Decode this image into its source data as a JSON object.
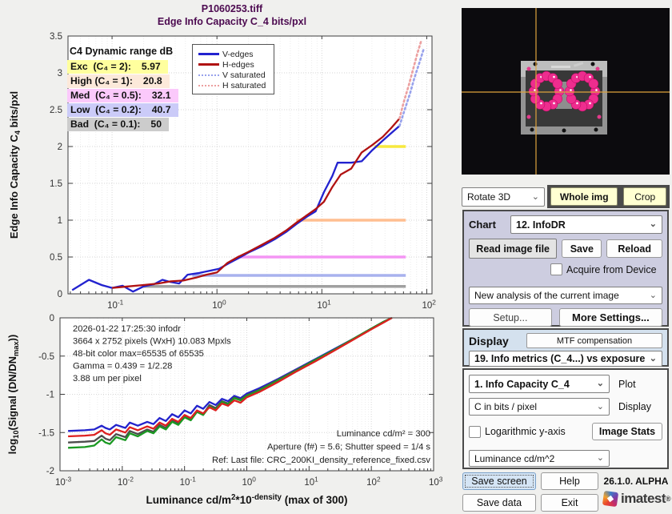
{
  "fig": {
    "title1": "P1060253.tiff",
    "title2": "Edge Info Capacity C_4 bits/pxl"
  },
  "colors": {
    "title": "#4c0a50",
    "v_edges": "#2222cf",
    "h_edges": "#b01212",
    "v_saturated": "#98a2ec",
    "h_saturated": "#eca0a0",
    "bottom_blue": "#2222cc",
    "bottom_red": "#dd2020",
    "bottom_green": "#1a9922",
    "bottom_gray": "#4d4d4d",
    "crosshair": "#dfa33c",
    "blob_pink": "#ee2d8e"
  },
  "icons": {
    "chevron": "⌄"
  },
  "chart_data": [
    {
      "type": "line",
      "title": "Edge Info Capacity C_4 bits/pxl",
      "xscale": "log",
      "xlim_log": [
        -1.42,
        2.05
      ],
      "ylim": [
        0,
        3.5
      ],
      "xticks_log": [
        -1,
        0,
        1,
        2
      ],
      "yticks": [
        0,
        0.5,
        1,
        1.5,
        2,
        2.5,
        3,
        3.5
      ],
      "ylabel_parts": [
        {
          "t": "Edge Info Capacity C"
        },
        {
          "t": "4",
          "s": "sub"
        },
        {
          "t": " bits/pxl"
        }
      ],
      "grid": true,
      "legend_position": "upper-center",
      "legend": [
        {
          "label": "V-edges",
          "color": "#2222cf",
          "style": "solid"
        },
        {
          "label": "H-edges",
          "color": "#b01212",
          "style": "solid"
        },
        {
          "label": "V saturated",
          "color": "#98a2ec",
          "style": "dotted"
        },
        {
          "label": "H saturated",
          "color": "#eca0a0",
          "style": "dotted"
        }
      ],
      "threshold_lines": [
        {
          "y": 2.0,
          "x0_log": 1.5,
          "x1_log": 1.8,
          "color": "#f7e93e"
        },
        {
          "y": 1.0,
          "x0_log": 0.757,
          "x1_log": 1.8,
          "color": "#ffbe90"
        },
        {
          "y": 0.5,
          "x0_log": 0.197,
          "x1_log": 1.8,
          "color": "#f495f4"
        },
        {
          "y": 0.25,
          "x0_log": -0.235,
          "x1_log": 1.8,
          "color": "#a8b2ee"
        },
        {
          "y": 0.1,
          "x0_log": -0.7,
          "x1_log": 1.8,
          "color": "#a0a0a0"
        }
      ],
      "series": [
        {
          "name": "V-edges",
          "color": "#2222cf",
          "style": "solid",
          "points": [
            [
              -1.38,
              0.05
            ],
            [
              -1.22,
              0.19
            ],
            [
              -1.1,
              0.12
            ],
            [
              -1.0,
              0.08
            ],
            [
              -0.9,
              0.11
            ],
            [
              -0.8,
              0.03
            ],
            [
              -0.7,
              0.1
            ],
            [
              -0.6,
              0.13
            ],
            [
              -0.52,
              0.19
            ],
            [
              -0.44,
              0.16
            ],
            [
              -0.36,
              0.14
            ],
            [
              -0.28,
              0.26
            ],
            [
              -0.18,
              0.28
            ],
            [
              -0.08,
              0.31
            ],
            [
              0.02,
              0.34
            ],
            [
              0.12,
              0.42
            ],
            [
              0.2,
              0.48
            ],
            [
              0.3,
              0.56
            ],
            [
              0.42,
              0.64
            ],
            [
              0.55,
              0.74
            ],
            [
              0.66,
              0.84
            ],
            [
              0.76,
              0.95
            ],
            [
              0.86,
              1.05
            ],
            [
              0.94,
              1.12
            ],
            [
              1.02,
              1.38
            ],
            [
              1.1,
              1.6
            ],
            [
              1.15,
              1.78
            ],
            [
              1.28,
              1.78
            ],
            [
              1.38,
              1.8
            ],
            [
              1.48,
              1.95
            ],
            [
              1.58,
              2.08
            ],
            [
              1.66,
              2.18
            ],
            [
              1.74,
              2.28
            ]
          ]
        },
        {
          "name": "H-edges",
          "color": "#b01212",
          "style": "solid",
          "points": [
            [
              -1.0,
              0.08
            ],
            [
              -0.85,
              0.1
            ],
            [
              -0.7,
              0.12
            ],
            [
              -0.56,
              0.14
            ],
            [
              -0.44,
              0.17
            ],
            [
              -0.32,
              0.18
            ],
            [
              -0.2,
              0.22
            ],
            [
              -0.1,
              0.26
            ],
            [
              0.0,
              0.29
            ],
            [
              0.1,
              0.42
            ],
            [
              0.2,
              0.5
            ],
            [
              0.3,
              0.57
            ],
            [
              0.42,
              0.66
            ],
            [
              0.55,
              0.76
            ],
            [
              0.66,
              0.86
            ],
            [
              0.76,
              0.97
            ],
            [
              0.86,
              1.07
            ],
            [
              0.94,
              1.15
            ],
            [
              1.02,
              1.25
            ],
            [
              1.1,
              1.45
            ],
            [
              1.18,
              1.62
            ],
            [
              1.28,
              1.7
            ],
            [
              1.38,
              1.92
            ],
            [
              1.48,
              2.02
            ],
            [
              1.58,
              2.13
            ],
            [
              1.66,
              2.25
            ],
            [
              1.74,
              2.38
            ]
          ]
        },
        {
          "name": "V saturated",
          "color": "#98a2ec",
          "style": "dotted",
          "points": [
            [
              1.74,
              2.28
            ],
            [
              1.79,
              2.5
            ],
            [
              1.84,
              2.72
            ],
            [
              1.88,
              2.92
            ],
            [
              1.93,
              3.14
            ],
            [
              1.97,
              3.32
            ]
          ]
        },
        {
          "name": "H saturated",
          "color": "#eca0a0",
          "style": "dotted",
          "points": [
            [
              1.74,
              2.38
            ],
            [
              1.78,
              2.6
            ],
            [
              1.83,
              2.84
            ],
            [
              1.87,
              3.05
            ],
            [
              1.91,
              3.26
            ],
            [
              1.95,
              3.45
            ]
          ]
        }
      ],
      "dr_table": {
        "title": "C4 Dynamic range dB",
        "rows": [
          {
            "label": "Exc  (C₄ = 2):",
            "value": "5.97",
            "bg": "#ffff9e"
          },
          {
            "label": "High (C₄ = 1):",
            "value": "20.8",
            "bg": "#fce9da"
          },
          {
            "label": "Med  (C₄ = 0.5):",
            "value": "32.1",
            "bg": "#fbc9fb"
          },
          {
            "label": "Low  (C₄ = 0.2):",
            "value": "40.7",
            "bg": "#cbcbf8"
          },
          {
            "label": "Bad  (C₄ = 0.1):",
            "value": "50",
            "bg": "#cccccc"
          }
        ]
      }
    },
    {
      "type": "line",
      "xscale": "log",
      "xlim_log": [
        -3,
        3
      ],
      "ylim": [
        -2,
        0
      ],
      "xticks_log": [
        -3,
        -2,
        -1,
        0,
        1,
        2,
        3
      ],
      "yticks": [
        0,
        -0.5,
        -1,
        -1.5,
        -2
      ],
      "ylabel_parts": [
        {
          "t": "log"
        },
        {
          "t": "10",
          "s": "sub"
        },
        {
          "t": "(Signal (DN/DN"
        },
        {
          "t": "max",
          "s": "sub"
        },
        {
          "t": "))"
        }
      ],
      "xlabel_parts": [
        {
          "t": "Luminance cd/m"
        },
        {
          "t": "2",
          "s": "sup"
        },
        {
          "t": "*10"
        },
        {
          "t": "-density",
          "s": "sup"
        },
        {
          "t": " (max of 300)"
        }
      ],
      "grid": true,
      "annotations_left": [
        "2026-01-22 17:25:30   infodr",
        "3664 x 2752 pixels (WxH)   10.083 Mpxls",
        "48-bit color  max=65535 of 65535",
        "Gamma = 0.439 = 1/2.28",
        "3.88 um per pixel"
      ],
      "annotations_right": [
        "Luminance cd/m² = 300",
        "Aperture (f#) = 5.6;  Shutter speed = 1/4 s",
        "Ref: Last file: CRC_200KI_density_reference_fixed.csv"
      ],
      "x_log": [
        -2.87,
        -2.6,
        -2.45,
        -2.33,
        -2.27,
        -2.2,
        -2.1,
        -1.95,
        -1.88,
        -1.75,
        -1.6,
        -1.5,
        -1.4,
        -1.3,
        -1.2,
        -1.1,
        -1.0,
        -0.9,
        -0.8,
        -0.7,
        -0.6,
        -0.5,
        -0.4,
        -0.3,
        -0.2,
        -0.1,
        0.0,
        0.2,
        0.5,
        0.8,
        1.1,
        1.4,
        1.7,
        2.0,
        2.2,
        2.33
      ],
      "series": [
        {
          "name": "B",
          "color": "#2222cc",
          "style": "solid",
          "values": [
            -1.48,
            -1.47,
            -1.46,
            -1.41,
            -1.44,
            -1.46,
            -1.4,
            -1.44,
            -1.37,
            -1.41,
            -1.36,
            -1.39,
            -1.31,
            -1.35,
            -1.26,
            -1.3,
            -1.21,
            -1.25,
            -1.15,
            -1.19,
            -1.1,
            -1.14,
            -1.06,
            -1.09,
            -1.02,
            -1.05,
            -0.99,
            -0.92,
            -0.8,
            -0.67,
            -0.54,
            -0.41,
            -0.28,
            -0.14,
            -0.05,
            0.0
          ]
        },
        {
          "name": "gray",
          "color": "#4d4d4d",
          "style": "solid",
          "values": [
            -1.63,
            -1.62,
            -1.61,
            -1.54,
            -1.58,
            -1.6,
            -1.52,
            -1.56,
            -1.48,
            -1.52,
            -1.46,
            -1.49,
            -1.4,
            -1.44,
            -1.34,
            -1.38,
            -1.28,
            -1.32,
            -1.22,
            -1.26,
            -1.14,
            -1.18,
            -1.09,
            -1.12,
            -1.04,
            -1.07,
            -1.01,
            -0.94,
            -0.81,
            -0.68,
            -0.55,
            -0.42,
            -0.28,
            -0.14,
            -0.05,
            0.0
          ]
        },
        {
          "name": "G",
          "color": "#1a9922",
          "style": "solid",
          "values": [
            -1.7,
            -1.69,
            -1.67,
            -1.59,
            -1.63,
            -1.65,
            -1.56,
            -1.6,
            -1.51,
            -1.55,
            -1.48,
            -1.51,
            -1.42,
            -1.46,
            -1.36,
            -1.4,
            -1.3,
            -1.34,
            -1.23,
            -1.27,
            -1.16,
            -1.2,
            -1.1,
            -1.13,
            -1.05,
            -1.08,
            -1.02,
            -0.95,
            -0.82,
            -0.69,
            -0.55,
            -0.42,
            -0.28,
            -0.14,
            -0.05,
            0.0
          ]
        },
        {
          "name": "R",
          "color": "#dd2020",
          "style": "solid",
          "values": [
            -1.55,
            -1.54,
            -1.53,
            -1.47,
            -1.51,
            -1.53,
            -1.46,
            -1.5,
            -1.43,
            -1.47,
            -1.42,
            -1.45,
            -1.37,
            -1.41,
            -1.32,
            -1.36,
            -1.27,
            -1.31,
            -1.21,
            -1.25,
            -1.17,
            -1.21,
            -1.12,
            -1.15,
            -1.08,
            -1.11,
            -1.04,
            -0.97,
            -0.84,
            -0.7,
            -0.57,
            -0.43,
            -0.29,
            -0.15,
            -0.06,
            0.0
          ]
        }
      ]
    }
  ],
  "viewer": {
    "rotate_select": "Rotate 3D",
    "whole_img": "Whole img",
    "crop": "Crop"
  },
  "chart_panel": {
    "chart_label": "Chart",
    "chart_select": "12. InfoDR",
    "read_image_file": "Read image file",
    "save": "Save",
    "reload": "Reload",
    "acquire": "Acquire from Device",
    "analysis_select": "New analysis of the current image",
    "setup": "Setup...",
    "more_settings": "More Settings..."
  },
  "display_panel": {
    "display_label": "Display",
    "mtf_comp": "MTF compensation",
    "display_select": "19. Info metrics (C_4...) vs exposure"
  },
  "plot_panel": {
    "plot_select": "1.  Info Capacity C_4",
    "plot_label": "Plot",
    "units_select": "C in bits / pixel",
    "units_label": "Display",
    "log_y": "Logarithmic y-axis",
    "image_stats": "Image Stats",
    "lum_select": "Luminance cd/m^2"
  },
  "footer": {
    "save_screen": "Save screen",
    "help": "Help",
    "version": "26.1.0. ALPHA",
    "save_data": "Save data",
    "exit": "Exit",
    "brand": "imatest",
    "reg": "®"
  }
}
